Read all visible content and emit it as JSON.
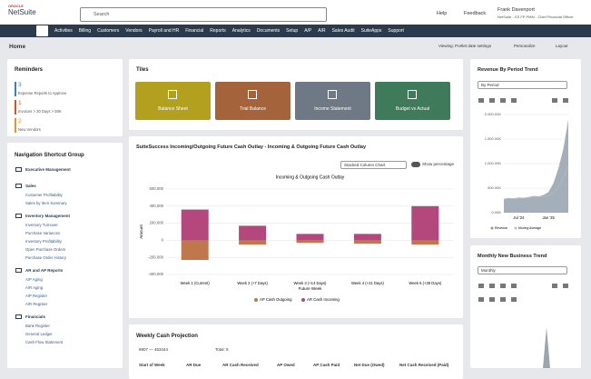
{
  "header": {
    "logo_brand": "ORACLE",
    "logo_product": "NetSuite",
    "search_placeholder": "Search",
    "help": "Help",
    "feedback": "Feedback",
    "user_name": "Frank Davenport",
    "user_role": "NetSuite - SS FP PMM - Chief Financial Officer"
  },
  "nav": [
    "Activities",
    "Billing",
    "Customers",
    "Vendors",
    "Payroll and HR",
    "Financial",
    "Reports",
    "Analytics",
    "Documents",
    "Setup",
    "A/P",
    "A/R",
    "Sales Audit",
    "SuiteApps",
    "Support"
  ],
  "page": {
    "title": "Home",
    "viewing": "Viewing: Portlet date settings",
    "personalize": "Personalize",
    "layout": "Layout"
  },
  "reminders": {
    "title": "Reminders",
    "items": [
      {
        "count": 3,
        "label": "Expense Reports to Approve",
        "color": "#3b7fc4"
      },
      {
        "count": 1,
        "label": "Invoices > 30 Days > 50K",
        "color": "#d9531e"
      },
      {
        "count": 2,
        "label": "New Vendors",
        "color": "#e8912d"
      }
    ]
  },
  "shortcuts": {
    "title": "Navigation Shortcut Group",
    "groups": [
      {
        "name": "Executive Management",
        "links": []
      },
      {
        "name": "Sales",
        "links": [
          "Customer Profitability",
          "Sales by Item Summary"
        ]
      },
      {
        "name": "Inventory Management",
        "links": [
          "Inventory Turnover",
          "Purchase Variances",
          "Inventory Profitability",
          "Open Purchase Orders",
          "Purchase Order History"
        ]
      },
      {
        "name": "AR and AP Reports",
        "links": [
          "A/P Aging",
          "A/R Aging",
          "A/P Register",
          "A/R Register"
        ]
      },
      {
        "name": "Financials",
        "links": [
          "Bank Register",
          "General Ledger",
          "Cash Flow Statement"
        ]
      }
    ]
  },
  "tiles": {
    "title": "Tiles",
    "items": [
      {
        "label": "Balance Sheet",
        "color": "#b3a01f"
      },
      {
        "label": "Trial Balance",
        "color": "#a4633b"
      },
      {
        "label": "Income Statement",
        "color": "#6e7985"
      },
      {
        "label": "Budget vs Actual",
        "color": "#3f7a5b"
      }
    ]
  },
  "cash_outlay": {
    "title": "SuiteSuccess Incoming/Outgoing Future Cash Outlay - Incoming & Outgoing Future Cash Outlay",
    "chart_type_select": "Stacked Column Chart",
    "toggle": "Show percentage",
    "chart": {
      "type": "bar",
      "stacked": true,
      "title": "Incoming & Outgoing Cash Outlay",
      "x_label": "Future Week",
      "y_label": "Amount",
      "categories": [
        "Week 1 (Current)",
        "Week 2 (+7 Days)",
        "Week 3 (+14 Days)",
        "Week 4 (+21 Days)",
        "Week 5 (+28 Days)"
      ],
      "series": [
        {
          "name": "AP Cash Outgoing",
          "color": "#c0774b",
          "values": [
            -230000,
            -50000,
            -30000,
            -40000,
            -50000
          ]
        },
        {
          "name": "AR Cash Incoming",
          "color": "#b4487c",
          "values": [
            360000,
            170000,
            75000,
            75000,
            400000
          ]
        }
      ],
      "ylim": [
        -400000,
        600000
      ],
      "yticks": [
        {
          "value": 600000,
          "label": "600,000"
        },
        {
          "value": 400000,
          "label": "400,000"
        },
        {
          "value": 200000,
          "label": "200,000"
        },
        0,
        {
          "value": -200000,
          "label": "-200,000"
        },
        {
          "value": -400000,
          "label": "-400,000"
        }
      ],
      "grid": true,
      "legend": "bottom"
    }
  },
  "weekly": {
    "title": "Weekly Cash Projection",
    "filter": "8907 — 453444",
    "total": "Total: 9",
    "columns": [
      "Start of Week",
      "AR Due",
      "AR Cash Received",
      "AP Owed",
      "AP Cash Paid",
      "Net Due (Owed)",
      "Net Cash Received (Paid)"
    ]
  },
  "revenue": {
    "title": "Revenue By Period Trend",
    "select": "By Period",
    "chart": {
      "type": "area",
      "categories": [
        null,
        null,
        null,
        "Jul '24",
        null,
        null,
        null,
        null,
        null,
        "Jan '25",
        null,
        null,
        null,
        null
      ],
      "series": [
        {
          "name": "Revenue",
          "color": "#8e9ba7",
          "values": [
            280,
            300,
            290,
            310,
            300,
            320,
            340,
            330,
            360,
            420,
            600,
            900,
            1300,
            1900
          ]
        },
        {
          "name": "Moving Average",
          "color": "#b9c1c9",
          "values": [
            280,
            290,
            290,
            295,
            300,
            305,
            315,
            320,
            330,
            350,
            410,
            520,
            700,
            950
          ]
        }
      ],
      "ylim": [
        0,
        2000
      ],
      "yticks": [
        {
          "value": 2000,
          "label": "2,000.00K"
        },
        {
          "value": 1500,
          "label": "1,500.00K"
        },
        {
          "value": 1000,
          "label": "1,000.00K"
        },
        {
          "value": 500,
          "label": "500.00K"
        },
        {
          "value": 0,
          "label": "0.00K"
        }
      ],
      "grid": true,
      "legend": "bottom"
    }
  },
  "monthly": {
    "title": "Monthly New Business Trend",
    "select": "Monthly"
  }
}
